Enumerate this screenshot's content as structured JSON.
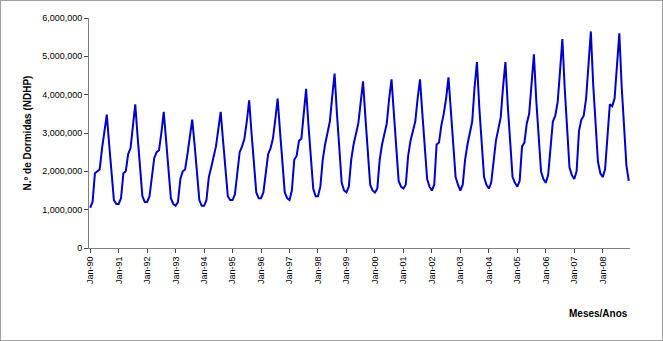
{
  "chart_data": {
    "type": "line",
    "y_label": "N.º de Dormidas (NDHP)",
    "x_label": "Meses/Anos",
    "color": "#0000cc",
    "grid": false,
    "categories": [
      "Jan-90",
      null,
      null,
      null,
      null,
      null,
      null,
      null,
      null,
      null,
      null,
      null,
      "Jan-91",
      null,
      null,
      null,
      null,
      null,
      null,
      null,
      null,
      null,
      null,
      null,
      "Jan-92",
      null,
      null,
      null,
      null,
      null,
      null,
      null,
      null,
      null,
      null,
      null,
      "Jan-93",
      null,
      null,
      null,
      null,
      null,
      null,
      null,
      null,
      null,
      null,
      null,
      "Jan-94",
      null,
      null,
      null,
      null,
      null,
      null,
      null,
      null,
      null,
      null,
      null,
      "Jan-95",
      null,
      null,
      null,
      null,
      null,
      null,
      null,
      null,
      null,
      null,
      null,
      "Jan-96",
      null,
      null,
      null,
      null,
      null,
      null,
      null,
      null,
      null,
      null,
      null,
      "Jan-97",
      null,
      null,
      null,
      null,
      null,
      null,
      null,
      null,
      null,
      null,
      null,
      "Jan-98",
      null,
      null,
      null,
      null,
      null,
      null,
      null,
      null,
      null,
      null,
      null,
      "Jan-99",
      null,
      null,
      null,
      null,
      null,
      null,
      null,
      null,
      null,
      null,
      null,
      "Jan-00",
      null,
      null,
      null,
      null,
      null,
      null,
      null,
      null,
      null,
      null,
      null,
      "Jan-01",
      null,
      null,
      null,
      null,
      null,
      null,
      null,
      null,
      null,
      null,
      null,
      "Jan-02",
      null,
      null,
      null,
      null,
      null,
      null,
      null,
      null,
      null,
      null,
      null,
      "Jan-03",
      null,
      null,
      null,
      null,
      null,
      null,
      null,
      null,
      null,
      null,
      null,
      "Jan-04",
      null,
      null,
      null,
      null,
      null,
      null,
      null,
      null,
      null,
      null,
      null,
      "Jan-05",
      null,
      null,
      null,
      null,
      null,
      null,
      null,
      null,
      null,
      null,
      null,
      "Jan-06",
      null,
      null,
      null,
      null,
      null,
      null,
      null,
      null,
      null,
      null,
      null,
      "Jan-07",
      null,
      null,
      null,
      null,
      null,
      null,
      null,
      null,
      null,
      null,
      null,
      "Jan-08",
      null,
      null,
      null,
      null,
      null,
      null,
      null,
      null,
      null,
      null,
      null
    ],
    "values": [
      1050000,
      1200000,
      1950000,
      2000000,
      2050000,
      2600000,
      3000000,
      3480000,
      2700000,
      2000000,
      1250000,
      1150000,
      1150000,
      1300000,
      1950000,
      2000000,
      2450000,
      2600000,
      3200000,
      3750000,
      2900000,
      2200000,
      1350000,
      1200000,
      1200000,
      1350000,
      1900000,
      2350000,
      2500000,
      2550000,
      3000000,
      3550000,
      2800000,
      2100000,
      1300000,
      1150000,
      1100000,
      1200000,
      1800000,
      2000000,
      2050000,
      2450000,
      2900000,
      3350000,
      2700000,
      1900000,
      1250000,
      1100000,
      1100000,
      1250000,
      1850000,
      2100000,
      2350000,
      2650000,
      3100000,
      3550000,
      2800000,
      2000000,
      1350000,
      1250000,
      1250000,
      1400000,
      2050000,
      2500000,
      2650000,
      2850000,
      3300000,
      3850000,
      3000000,
      2200000,
      1450000,
      1300000,
      1300000,
      1450000,
      2000000,
      2450000,
      2600000,
      2850000,
      3350000,
      3900000,
      3050000,
      2250000,
      1450000,
      1300000,
      1250000,
      1500000,
      2300000,
      2400000,
      2800000,
      2850000,
      3500000,
      4150000,
      3200000,
      2400000,
      1550000,
      1350000,
      1350000,
      1600000,
      2300000,
      2700000,
      3000000,
      3300000,
      3950000,
      4550000,
      3500000,
      2650000,
      1700000,
      1500000,
      1450000,
      1600000,
      2300000,
      2700000,
      3000000,
      3250000,
      3800000,
      4350000,
      3400000,
      2600000,
      1650000,
      1500000,
      1450000,
      1550000,
      2300000,
      2700000,
      3000000,
      3250000,
      3900000,
      4400000,
      3500000,
      2650000,
      1750000,
      1600000,
      1550000,
      1650000,
      2400000,
      2800000,
      3050000,
      3300000,
      3900000,
      4400000,
      3500000,
      2700000,
      1800000,
      1600000,
      1500000,
      1650000,
      2700000,
      2750000,
      3200000,
      3500000,
      3900000,
      4450000,
      3550000,
      2800000,
      1850000,
      1650000,
      1500000,
      1650000,
      2300000,
      2700000,
      3050000,
      3300000,
      4200000,
      4850000,
      3650000,
      2800000,
      1850000,
      1650000,
      1550000,
      1700000,
      2300000,
      2800000,
      3100000,
      3400000,
      4200000,
      4850000,
      3700000,
      2850000,
      1850000,
      1700000,
      1600000,
      1750000,
      2650000,
      2750000,
      3250000,
      3500000,
      4350000,
      5050000,
      3850000,
      2950000,
      2000000,
      1800000,
      1700000,
      1900000,
      2550000,
      3300000,
      3450000,
      3800000,
      4600000,
      5450000,
      4150000,
      3200000,
      2100000,
      1900000,
      1800000,
      2000000,
      3050000,
      3350000,
      3450000,
      3900000,
      4800000,
      5650000,
      4250000,
      3300000,
      2250000,
      1950000,
      1850000,
      2050000,
      3050000,
      3750000,
      3700000,
      3900000,
      4750000,
      5600000,
      4200000,
      3300000,
      2150000,
      1750000
    ],
    "ylim": [
      0,
      6000000
    ],
    "yticks": [
      0,
      {
        "value": 1000000,
        "label": "1,000,000"
      },
      {
        "value": 2000000,
        "label": "2,000,000"
      },
      {
        "value": 3000000,
        "label": "3,000,000"
      },
      {
        "value": 4000000,
        "label": "4,000,000"
      },
      {
        "value": 5000000,
        "label": "5,000,000"
      },
      {
        "value": 6000000,
        "label": "6,000,000"
      }
    ]
  }
}
